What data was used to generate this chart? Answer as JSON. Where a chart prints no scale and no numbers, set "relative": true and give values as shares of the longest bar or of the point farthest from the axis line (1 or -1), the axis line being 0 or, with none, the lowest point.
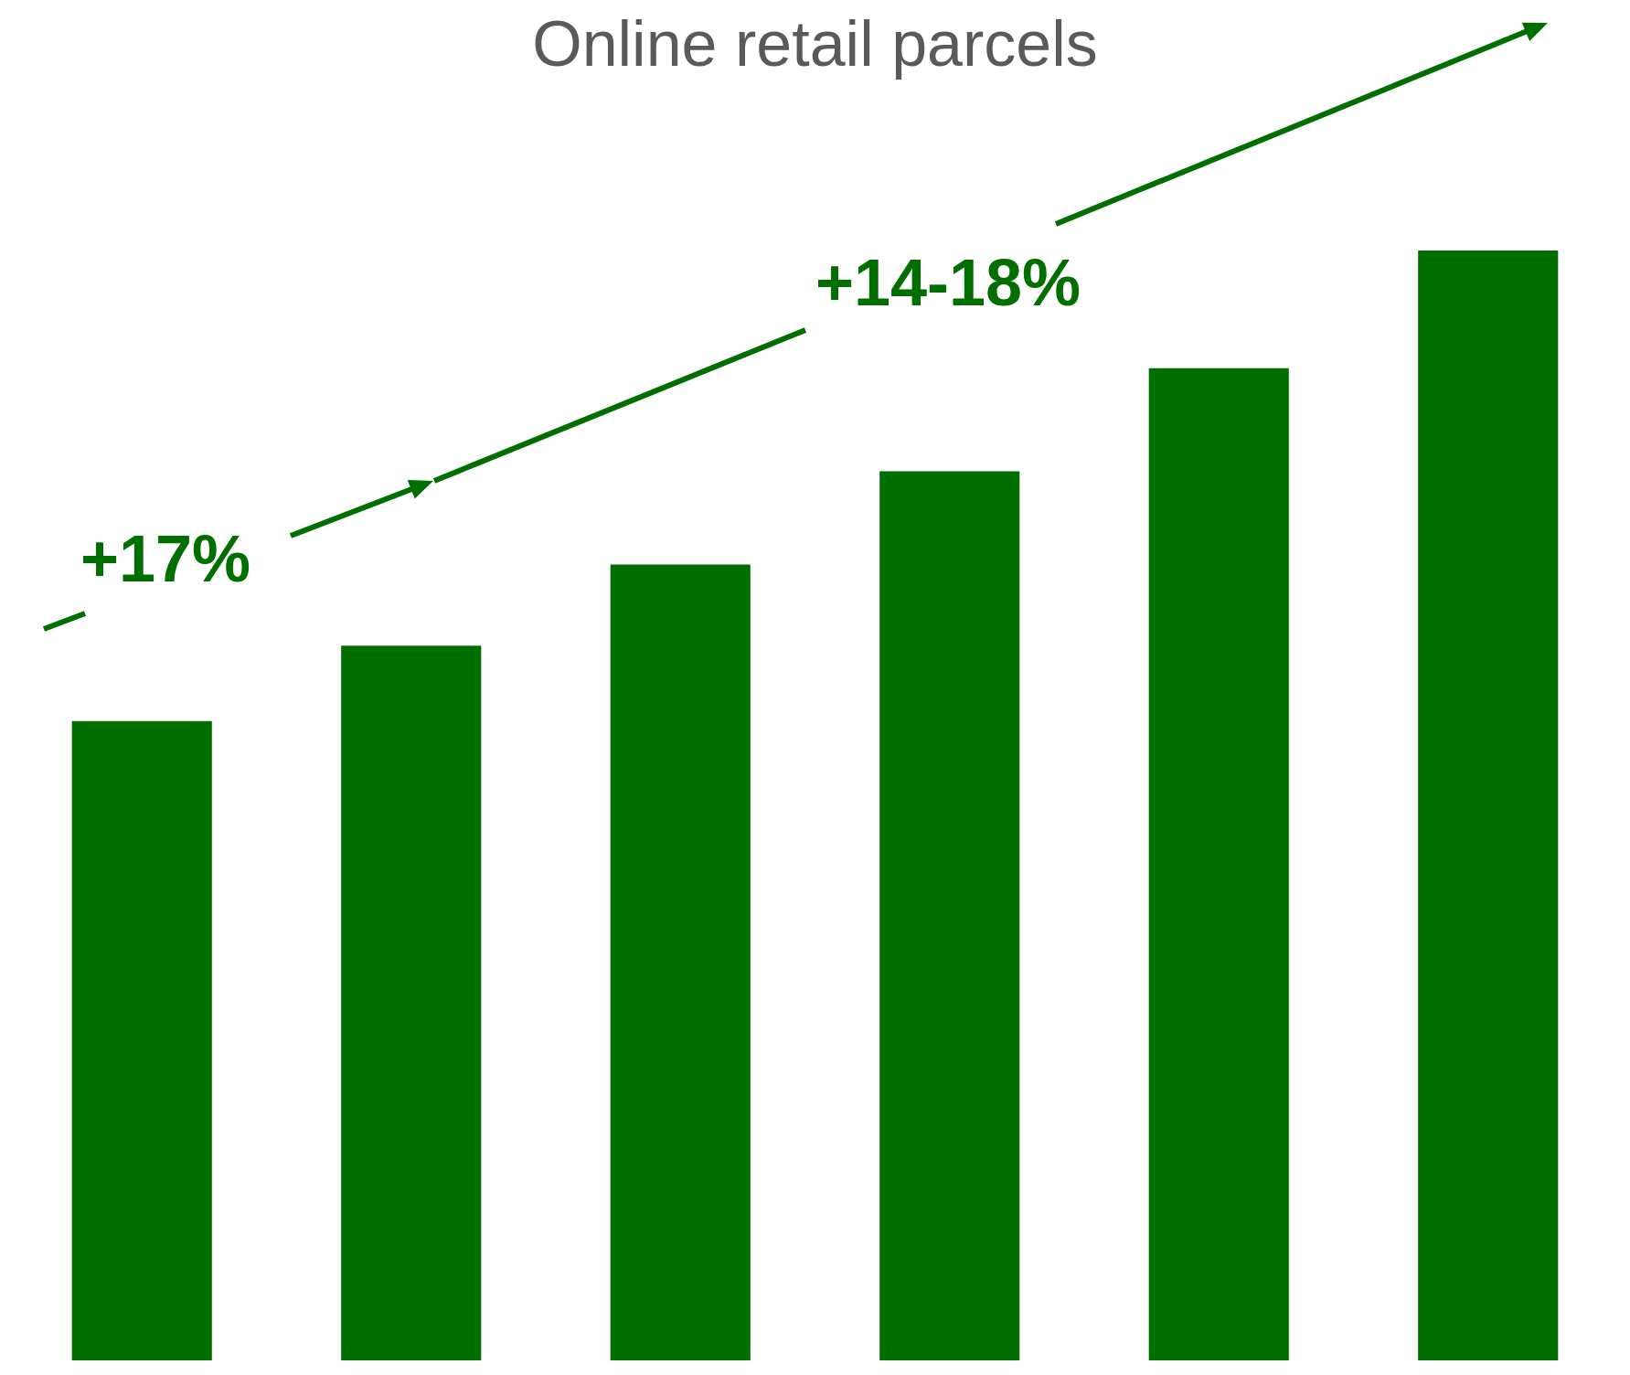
{
  "chart_data": {
    "type": "bar",
    "title": "Online retail parcels",
    "categories": [
      null,
      null,
      null,
      null,
      null,
      null
    ],
    "relative": true,
    "values": [
      0.576,
      0.644,
      0.717,
      0.801,
      0.894,
      1
    ],
    "color": "#006f00",
    "annotations": [
      "+17%",
      "+14-18%"
    ]
  }
}
